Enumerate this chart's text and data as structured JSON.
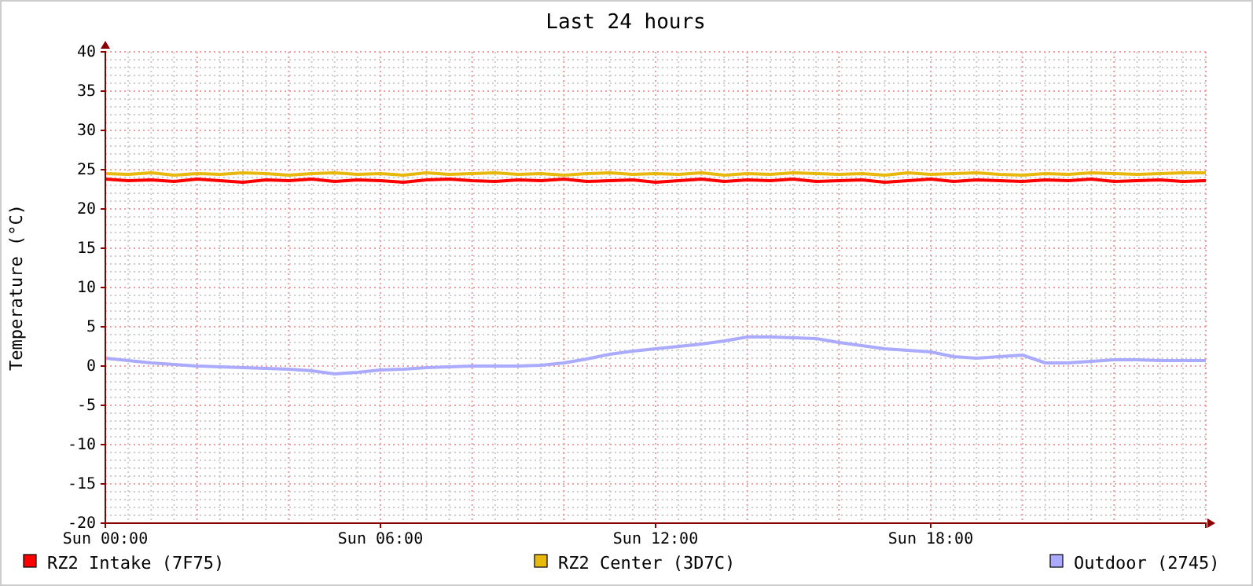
{
  "chart_data": {
    "type": "line",
    "title": "Last 24 hours",
    "ylabel": "Temperature (°C)",
    "categories": [
      "Sun 00:00",
      null,
      null,
      null,
      null,
      null,
      null,
      null,
      null,
      null,
      null,
      null,
      "Sun 06:00",
      null,
      null,
      null,
      null,
      null,
      null,
      null,
      null,
      null,
      null,
      null,
      "Sun 12:00",
      null,
      null,
      null,
      null,
      null,
      null,
      null,
      null,
      null,
      null,
      null,
      "Sun 18:00",
      null,
      null,
      null,
      null,
      null,
      null,
      null,
      null,
      null,
      null,
      null,
      null
    ],
    "ylim": [
      -20,
      40
    ],
    "yticks": [
      -20,
      -15,
      -10,
      -5,
      0,
      5,
      10,
      15,
      20,
      25,
      30,
      35,
      40
    ],
    "grid": true,
    "legend": "bottom",
    "line_style": "solid",
    "series": [
      {
        "name": "RZ2 Intake (7F75)",
        "color": "#ff0000",
        "values": [
          23.8,
          23.6,
          23.7,
          23.5,
          23.8,
          23.6,
          23.4,
          23.7,
          23.6,
          23.8,
          23.5,
          23.7,
          23.6,
          23.4,
          23.7,
          23.8,
          23.6,
          23.5,
          23.7,
          23.6,
          23.8,
          23.5,
          23.6,
          23.7,
          23.4,
          23.6,
          23.8,
          23.5,
          23.7,
          23.6,
          23.8,
          23.5,
          23.6,
          23.7,
          23.4,
          23.6,
          23.8,
          23.5,
          23.7,
          23.6,
          23.5,
          23.7,
          23.6,
          23.8,
          23.5,
          23.6,
          23.7,
          23.5,
          23.6
        ]
      },
      {
        "name": "RZ2 Center (3D7C)",
        "color": "#e8b80c",
        "values": [
          24.5,
          24.4,
          24.6,
          24.3,
          24.5,
          24.4,
          24.6,
          24.5,
          24.3,
          24.5,
          24.6,
          24.4,
          24.5,
          24.3,
          24.6,
          24.4,
          24.5,
          24.6,
          24.4,
          24.5,
          24.3,
          24.5,
          24.6,
          24.4,
          24.5,
          24.4,
          24.6,
          24.3,
          24.5,
          24.4,
          24.6,
          24.5,
          24.4,
          24.5,
          24.3,
          24.6,
          24.4,
          24.5,
          24.6,
          24.4,
          24.3,
          24.5,
          24.4,
          24.6,
          24.5,
          24.4,
          24.5,
          24.6,
          24.6
        ]
      },
      {
        "name": "Outdoor (2745)",
        "color": "#aaaaff",
        "values": [
          1.0,
          0.7,
          0.4,
          0.2,
          0,
          -0.1,
          -0.2,
          -0.3,
          -0.4,
          -0.6,
          -1.0,
          -0.8,
          -0.5,
          -0.4,
          -0.2,
          -0.1,
          0,
          0,
          0,
          0.1,
          0.4,
          0.9,
          1.5,
          1.9,
          2.2,
          2.5,
          2.8,
          3.2,
          3.7,
          3.7,
          3.6,
          3.5,
          3.0,
          2.6,
          2.2,
          2.0,
          1.8,
          1.2,
          1.0,
          1.2,
          1.4,
          0.4,
          0.4,
          0.6,
          0.8,
          0.8,
          0.7,
          0.7,
          0.7
        ]
      }
    ]
  }
}
